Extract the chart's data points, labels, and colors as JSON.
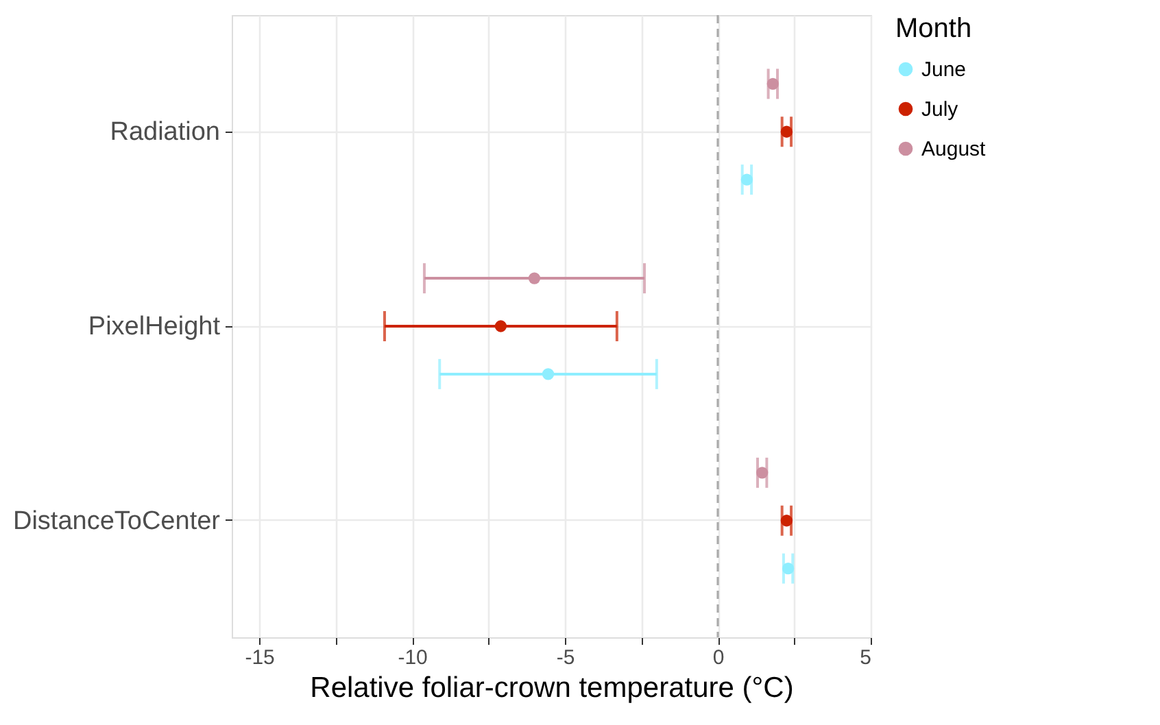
{
  "chart_data": {
    "type": "scatter",
    "orientation": "horizontal",
    "xlabel": "Relative foliar-crown temperature (°C)",
    "legend_title": "Month",
    "legend": "right",
    "grid": true,
    "marker": "circle",
    "categories": [
      "Radiation",
      "PixelHeight",
      "DistanceToCenter"
    ],
    "xlim": [
      -15.9,
      5
    ],
    "xticks": [
      -15,
      {
        "value": -12.5,
        "label": null
      },
      -10,
      {
        "value": -7.5,
        "label": null
      },
      -5,
      {
        "value": -2.5,
        "label": null
      },
      0,
      {
        "value": 2.5,
        "label": null
      },
      5
    ],
    "ref_lines": [
      {
        "axis": "x",
        "value": 0,
        "color": "#aaaaaa",
        "line_style": "dashed"
      }
    ],
    "series": [
      {
        "name": "June",
        "color": "#8eeeff",
        "values": [
          0.95,
          -5.55,
          2.3
        ],
        "errors": [
          0.15,
          3.55,
          0.15
        ]
      },
      {
        "name": "July",
        "color": "#cc2200",
        "values": [
          2.25,
          -7.1,
          2.25
        ],
        "errors": [
          0.15,
          3.8,
          0.15
        ]
      },
      {
        "name": "August",
        "color": "#cc8fa0",
        "values": [
          1.8,
          -6.0,
          1.45
        ],
        "errors": [
          0.15,
          3.6,
          0.15
        ]
      }
    ]
  }
}
